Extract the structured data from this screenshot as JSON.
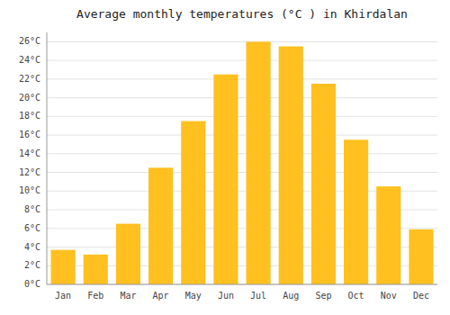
{
  "chart_data": {
    "type": "bar",
    "title": "Average monthly temperatures (°C ) in Khirdalan",
    "categories": [
      "Jan",
      "Feb",
      "Mar",
      "Apr",
      "May",
      "Jun",
      "Jul",
      "Aug",
      "Sep",
      "Oct",
      "Nov",
      "Dec"
    ],
    "values": [
      3.7,
      3.2,
      6.5,
      12.5,
      17.5,
      22.5,
      26.0,
      25.5,
      21.5,
      15.5,
      10.5,
      5.9
    ],
    "color": "#FFC020",
    "ylim": [
      0,
      27
    ],
    "yticks": [
      {
        "value": 0,
        "label": "0°C"
      },
      {
        "value": 2,
        "label": "2°C"
      },
      {
        "value": 4,
        "label": "4°C"
      },
      {
        "value": 6,
        "label": "6°C"
      },
      {
        "value": 8,
        "label": "8°C"
      },
      {
        "value": 10,
        "label": "10°C"
      },
      {
        "value": 12,
        "label": "12°C"
      },
      {
        "value": 14,
        "label": "14°C"
      },
      {
        "value": 16,
        "label": "16°C"
      },
      {
        "value": 18,
        "label": "18°C"
      },
      {
        "value": 20,
        "label": "20°C"
      },
      {
        "value": 22,
        "label": "22°C"
      },
      {
        "value": 24,
        "label": "24°C"
      },
      {
        "value": 26,
        "label": "26°C"
      }
    ],
    "grid": true
  }
}
